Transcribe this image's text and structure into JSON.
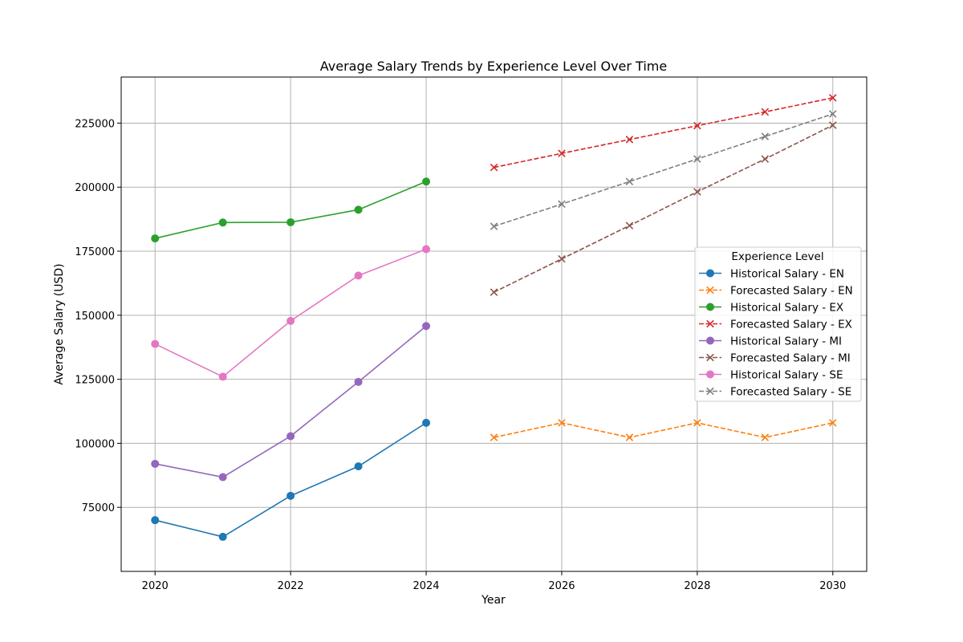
{
  "chart_data": {
    "type": "line",
    "title": "Average Salary Trends by Experience Level Over Time",
    "xlabel": "Year",
    "ylabel": "Average Salary (USD)",
    "xlim": [
      2019.5,
      2030.5
    ],
    "ylim": [
      50000,
      243000
    ],
    "xticks": [
      2020,
      2022,
      2024,
      2026,
      2028,
      2030
    ],
    "yticks": [
      75000,
      100000,
      125000,
      150000,
      175000,
      200000,
      225000
    ],
    "grid": true,
    "legend": {
      "title": "Experience Level",
      "placement": "center-right"
    },
    "series": [
      {
        "name": "Historical Salary - EN",
        "color": "#1f77b4",
        "linestyle": "solid",
        "marker": "circle",
        "x": [
          2020,
          2021,
          2022,
          2023,
          2024
        ],
        "y": [
          70000,
          63500,
          79500,
          91000,
          108000
        ]
      },
      {
        "name": "Forecasted Salary - EN",
        "color": "#ff7f0e",
        "linestyle": "dashed",
        "marker": "x",
        "x": [
          2025,
          2026,
          2027,
          2028,
          2029,
          2030
        ],
        "y": [
          102300,
          108000,
          102300,
          108000,
          102300,
          108000
        ]
      },
      {
        "name": "Historical Salary - EX",
        "color": "#2ca02c",
        "linestyle": "solid",
        "marker": "circle",
        "x": [
          2020,
          2021,
          2022,
          2023,
          2024
        ],
        "y": [
          180000,
          186200,
          186300,
          191200,
          202200
        ]
      },
      {
        "name": "Forecasted Salary - EX",
        "color": "#d62728",
        "linestyle": "dashed",
        "marker": "x",
        "x": [
          2025,
          2026,
          2027,
          2028,
          2029,
          2030
        ],
        "y": [
          207700,
          213200,
          218600,
          224000,
          229400,
          234900
        ]
      },
      {
        "name": "Historical Salary - MI",
        "color": "#9467bd",
        "linestyle": "solid",
        "marker": "circle",
        "x": [
          2020,
          2021,
          2022,
          2023,
          2024
        ],
        "y": [
          92000,
          86800,
          102800,
          124000,
          145800
        ]
      },
      {
        "name": "Forecasted Salary - MI",
        "color": "#8c564b",
        "linestyle": "dashed",
        "marker": "x",
        "x": [
          2025,
          2026,
          2027,
          2028,
          2029,
          2030
        ],
        "y": [
          159000,
          172000,
          185000,
          198200,
          211000,
          224200
        ]
      },
      {
        "name": "Historical Salary - SE",
        "color": "#e377c2",
        "linestyle": "solid",
        "marker": "circle",
        "x": [
          2020,
          2021,
          2022,
          2023,
          2024
        ],
        "y": [
          138800,
          126000,
          147800,
          165500,
          175800
        ]
      },
      {
        "name": "Forecasted Salary - SE",
        "color": "#7f7f7f",
        "linestyle": "dashed",
        "marker": "x",
        "x": [
          2025,
          2026,
          2027,
          2028,
          2029,
          2030
        ],
        "y": [
          184700,
          193400,
          202200,
          211000,
          219800,
          228600
        ]
      }
    ]
  }
}
